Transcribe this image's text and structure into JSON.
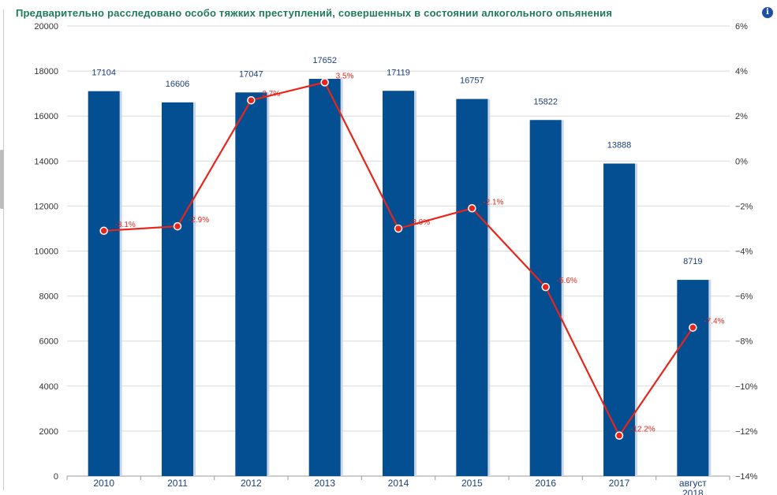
{
  "title": "Предварительно расследовано особо тяжких преступлений, совершенных в состоянии алкогольного опьянения",
  "info_icon": "info-icon",
  "chart_data": {
    "type": "bar",
    "title": "Предварительно расследовано особо тяжких преступлений, совершенных в состоянии алкогольного опьянения",
    "categories": [
      "2010",
      "2011",
      "2012",
      "2013",
      "2014",
      "2015",
      "2016",
      "2017",
      "август 2018"
    ],
    "series": [
      {
        "type": "bar",
        "color": "#044e92",
        "values": [
          17104,
          16606,
          17047,
          17652,
          17119,
          16757,
          15822,
          13888,
          8719
        ],
        "labels": [
          "17104",
          "16606",
          "17047",
          "17652",
          "17119",
          "16757",
          "15822",
          "13888",
          "8719"
        ]
      },
      {
        "type": "line",
        "axis": "right",
        "color": "#e8251b",
        "values": [
          -3.1,
          -2.9,
          2.7,
          3.5,
          -3.0,
          -2.1,
          -5.6,
          -12.2,
          -7.4
        ],
        "labels": [
          "-3.1%",
          "-2.9%",
          "2.7%",
          "3.5%",
          "-3.0%",
          "-2.1%",
          "-5.6%",
          "-12.2%",
          "-7.4%"
        ]
      }
    ],
    "ylim": [
      0,
      20000
    ],
    "y_ticks": [
      "20000",
      "18000",
      "16000",
      "14000",
      "12000",
      "10000",
      "8000",
      "6000",
      "4000",
      "2000",
      "0"
    ],
    "y2lim": [
      -14,
      6
    ],
    "y2_ticks": [
      "6%",
      "4%",
      "2%",
      "0%",
      "−2%",
      "−4%",
      "−6%",
      "−8%",
      "−10%",
      "−12%",
      "−14%"
    ],
    "grid": true
  }
}
